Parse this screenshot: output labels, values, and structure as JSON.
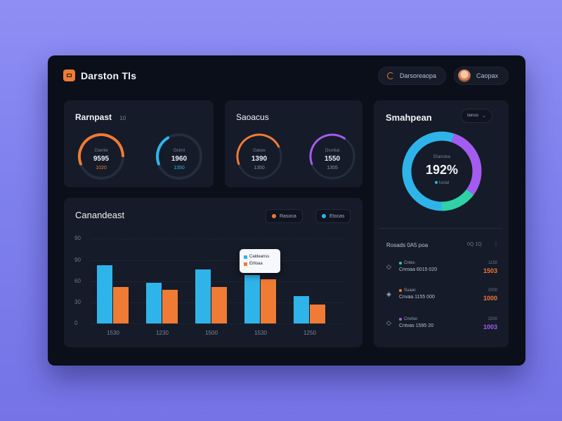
{
  "app": {
    "title": "Darston Tls"
  },
  "header": {
    "date_label": "Darsoreaopa",
    "user_name": "Caopax"
  },
  "gauges_card_1": {
    "title": "Rarnpast",
    "title_suffix": "10",
    "gauges": [
      {
        "label": "Ctarnle",
        "value": "9595",
        "sub": "1020",
        "progress": 0.55,
        "color": "#f07b34",
        "sub_color": "#f07b34"
      },
      {
        "label": "Octrnt",
        "value": "1960",
        "sub": "1350",
        "progress": 0.22,
        "color": "#2fb4ea",
        "sub_color": "#2fb4ea"
      }
    ]
  },
  "gauges_card_2": {
    "title": "Saoacus",
    "gauges": [
      {
        "label": "Oatuie",
        "value": "1390",
        "sub": "1350",
        "progress": 0.48,
        "color": "#f07b34",
        "color2": "#2fd2a6",
        "sub_color": "#8a93a6"
      },
      {
        "label": "Osvrtiat",
        "value": "1550",
        "sub": "1355",
        "progress": 0.4,
        "color": "#a45cf0",
        "color2": "#2fd2a6",
        "sub_color": "#8a93a6"
      }
    ]
  },
  "donut_card": {
    "title": "Smahpean",
    "dropdown_label": "Iwnoo",
    "center_label": "Etanctea",
    "center_value": "192%",
    "center_sub": "Iuctal",
    "segments": [
      {
        "name": "Blue",
        "value": 0.55,
        "color": "#2fb4ea"
      },
      {
        "name": "Purple",
        "value": 0.3,
        "color": "#a45cf0"
      },
      {
        "name": "Teal",
        "value": 0.15,
        "color": "#2fd2a6"
      }
    ]
  },
  "list_card": {
    "title": "Rosads 0A5 poa",
    "header_meta": "0Q 1Q",
    "rows": [
      {
        "icon": "◇",
        "status": "Cntes",
        "status_color": "#2fd2a6",
        "name": "Cnroaa 6015 020",
        "meta": "1150",
        "value": "1503",
        "value_color": "#f07b34"
      },
      {
        "icon": "◈",
        "status": "Suaac",
        "status_color": "#f07b34",
        "name": "Cnvaa 1155 000",
        "meta": "1000",
        "value": "1000",
        "value_color": "#f07b34"
      },
      {
        "icon": "◇",
        "status": "Cnvtoo",
        "status_color": "#a45cf0",
        "name": "Cntvas 1595 20",
        "meta": "1500",
        "value": "1003",
        "value_color": "#a45cf0"
      }
    ]
  },
  "bar_card": {
    "title": "Canandeast",
    "legend": [
      {
        "label": "Rasoca",
        "color": "#f07b34"
      },
      {
        "label": "Etocas",
        "color": "#2fb4ea"
      }
    ],
    "tooltip": {
      "line1": "Caldeanss",
      "line2": "Erlloaa"
    }
  },
  "chart_data": {
    "type": "bar",
    "categories": [
      "1530",
      "1230",
      "1500",
      "1530",
      "1250"
    ],
    "y_ticks": [
      "0",
      "30",
      "60",
      "90",
      "90"
    ],
    "ylim": [
      0,
      120
    ],
    "series": [
      {
        "values": [
          82,
          58,
          76,
          68,
          39
        ],
        "color": "#2fb4ea"
      },
      {
        "values": [
          52,
          48,
          52,
          62,
          27
        ],
        "color": "#f07b34"
      }
    ]
  }
}
